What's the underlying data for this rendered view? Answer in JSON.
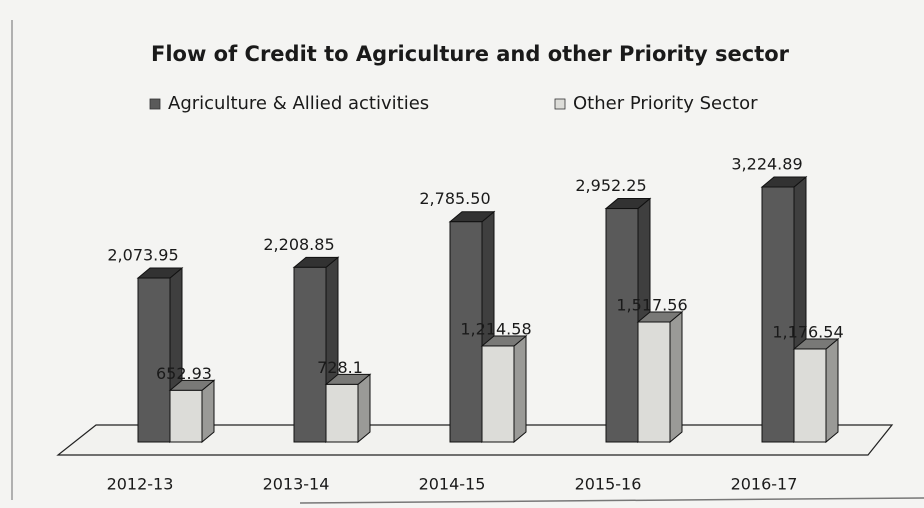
{
  "chart_data": {
    "type": "bar3d",
    "title": "Flow of Credit to Agriculture and other Priority sector",
    "categories": [
      "2012-13",
      "2013-14",
      "2014-15",
      "2015-16",
      "2016-17"
    ],
    "series": [
      {
        "name": "Agriculture & Allied activities",
        "color": "#5a5a5a",
        "values": [
          2073.95,
          2208.85,
          2785.5,
          2952.25,
          3224.89
        ],
        "value_labels": [
          "2,073.95",
          "2,208.85",
          "2,785.50",
          "2,952.25",
          "3,224.89"
        ]
      },
      {
        "name": "Other Priority Sector",
        "color": "#dcdcd8",
        "values": [
          652.93,
          728.1,
          1214.58,
          1517.56,
          1176.54
        ],
        "value_labels": [
          "652.93",
          "728.1",
          "1,214.58",
          "1,517.56",
          "1,176.54"
        ]
      }
    ],
    "legend": "top"
  }
}
